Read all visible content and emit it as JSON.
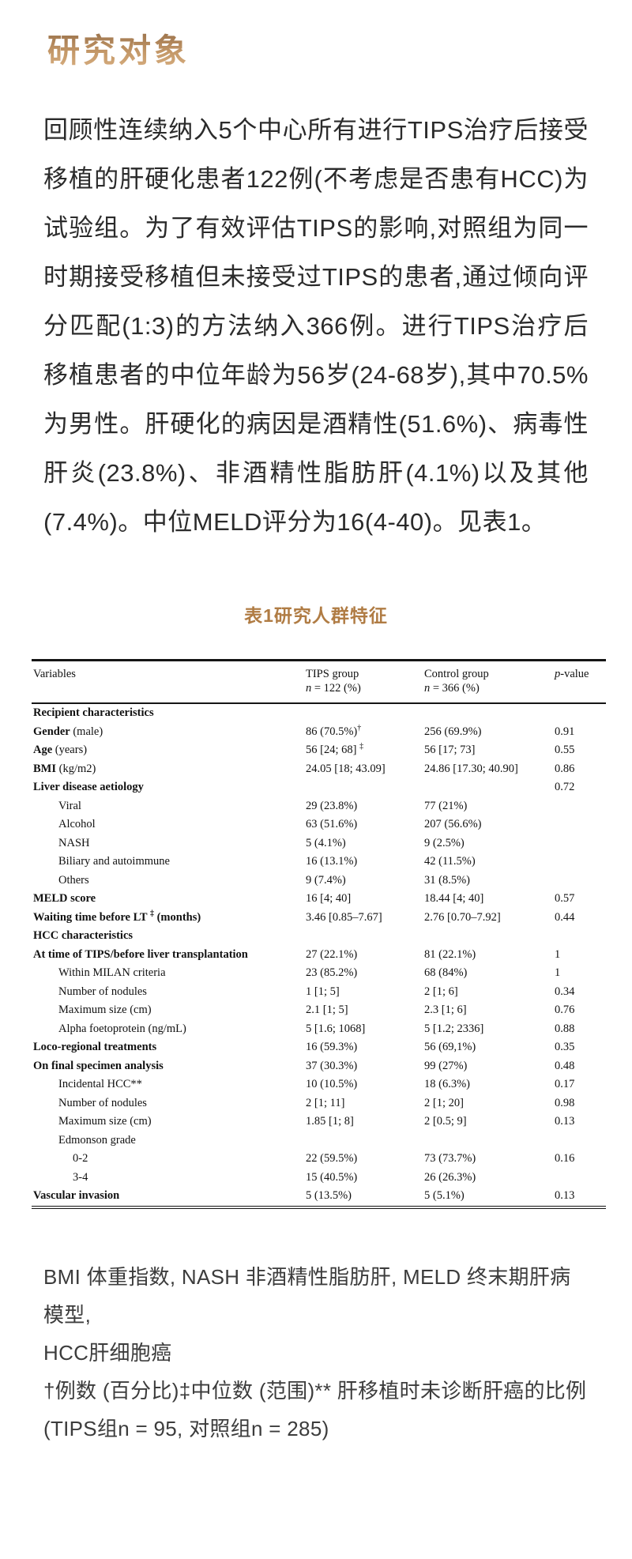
{
  "colors": {
    "accent_gold": "#b07c44",
    "title_gradient_top": "#8a6340",
    "title_gradient_bottom": "#d9b183",
    "body_text": "#2b2b2b",
    "table_text": "#111111",
    "footnote_text": "#3c3c3c",
    "rule_color": "#151515",
    "background": "#ffffff"
  },
  "header": {
    "title": "研究对象"
  },
  "article": {
    "paragraph": "回顾性连续纳入5个中心所有进行TIPS治疗后接受移植的肝硬化患者122例(不考虑是否患有HCC)为试验组。为了有效评估TIPS的影响,对照组为同一时期接受移植但未接受过TIPS的患者,通过倾向评分匹配(1:3)的方法纳入366例。进行TIPS治疗后移植患者的中位年龄为56岁(24-68岁),其中70.5%为男性。肝硬化的病因是酒精性(51.6%)、病毒性肝炎(23.8%)、非酒精性脂肪肝(4.1%)以及其他(7.4%)。中位MELD评分为16(4-40)。见表1。"
  },
  "table_section": {
    "title": "表1研究人群特征"
  },
  "table": {
    "headers": {
      "variables": "Variables",
      "tips_line1": "TIPS group",
      "tips_n": "n",
      "tips_n_rest": " = 122 (%)",
      "control_line1": "Control group",
      "control_n": "n",
      "control_n_rest": " = 366 (%)",
      "p_italic": "p",
      "p_rest": "-value"
    },
    "rows": [
      {
        "bold": "Recipient characteristics",
        "rest": "",
        "indent": 0,
        "tips": "",
        "control": "",
        "p": ""
      },
      {
        "bold": "Gender",
        "rest": " (male)",
        "indent": 0,
        "tips": "86 (70.5%)†",
        "control": "256 (69.9%)",
        "p": "0.91"
      },
      {
        "bold": "Age",
        "rest": " (years)",
        "indent": 0,
        "tips": "56 [24; 68] ‡",
        "control": "56 [17; 73]",
        "p": "0.55"
      },
      {
        "bold": "BMI",
        "rest": " (kg/m2)",
        "indent": 0,
        "tips": "24.05 [18; 43.09]",
        "control": "24.86 [17.30; 40.90]",
        "p": "0.86"
      },
      {
        "bold": "Liver disease aetiology",
        "rest": "",
        "indent": 0,
        "tips": "",
        "control": "",
        "p": "0.72"
      },
      {
        "bold": "",
        "rest": "Viral",
        "indent": 1,
        "tips": "29 (23.8%)",
        "control": "77 (21%)",
        "p": ""
      },
      {
        "bold": "",
        "rest": "Alcohol",
        "indent": 1,
        "tips": "63 (51.6%)",
        "control": "207 (56.6%)",
        "p": ""
      },
      {
        "bold": "",
        "rest": "NASH",
        "indent": 1,
        "tips": "5 (4.1%)",
        "control": "9 (2.5%)",
        "p": ""
      },
      {
        "bold": "",
        "rest": "Biliary and autoimmune",
        "indent": 1,
        "tips": "16 (13.1%)",
        "control": "42 (11.5%)",
        "p": ""
      },
      {
        "bold": "",
        "rest": "Others",
        "indent": 1,
        "tips": "9 (7.4%)",
        "control": "31 (8.5%)",
        "p": ""
      },
      {
        "bold": "MELD score",
        "rest": "",
        "indent": 0,
        "tips": "16 [4; 40]",
        "control": "18.44 [4; 40]",
        "p": "0.57"
      },
      {
        "bold": "Waiting time before LT ‡ (months)",
        "rest": "",
        "indent": 0,
        "tips": "3.46 [0.85–7.67]",
        "control": "2.76 [0.70–7.92]",
        "p": "0.44"
      },
      {
        "bold": "HCC characteristics",
        "rest": "",
        "indent": 0,
        "tips": "",
        "control": "",
        "p": ""
      },
      {
        "bold": "At time of TIPS/before liver transplantation",
        "rest": "",
        "indent": 0,
        "tips": "27 (22.1%)",
        "control": "81 (22.1%)",
        "p": "1"
      },
      {
        "bold": "",
        "rest": "Within MILAN criteria",
        "indent": 1,
        "tips": "23 (85.2%)",
        "control": "68 (84%)",
        "p": "1"
      },
      {
        "bold": "",
        "rest": "Number of nodules",
        "indent": 1,
        "tips": "1 [1; 5]",
        "control": "2 [1; 6]",
        "p": "0.34"
      },
      {
        "bold": "",
        "rest": "Maximum size (cm)",
        "indent": 1,
        "tips": "2.1 [1; 5]",
        "control": "2.3 [1; 6]",
        "p": "0.76"
      },
      {
        "bold": "",
        "rest": "Alpha foetoprotein (ng/mL)",
        "indent": 1,
        "tips": "5 [1.6; 1068]",
        "control": "5 [1.2; 2336]",
        "p": "0.88"
      },
      {
        "bold": "Loco-regional treatments",
        "rest": "",
        "indent": 0,
        "tips": "16 (59.3%)",
        "control": "56 (69,1%)",
        "p": "0.35"
      },
      {
        "bold": "On final specimen analysis",
        "rest": "",
        "indent": 0,
        "tips": "37 (30.3%)",
        "control": "99 (27%)",
        "p": "0.48"
      },
      {
        "bold": "",
        "rest": "Incidental HCC**",
        "indent": 1,
        "tips": "10 (10.5%)",
        "control": "18 (6.3%)",
        "p": "0.17"
      },
      {
        "bold": "",
        "rest": "Number of nodules",
        "indent": 1,
        "tips": "2 [1; 11]",
        "control": "2 [1; 20]",
        "p": "0.98"
      },
      {
        "bold": "",
        "rest": "Maximum size (cm)",
        "indent": 1,
        "tips": "1.85 [1; 8]",
        "control": "2 [0.5; 9]",
        "p": "0.13"
      },
      {
        "bold": "",
        "rest": "Edmonson grade",
        "indent": 1,
        "tips": "",
        "control": "",
        "p": ""
      },
      {
        "bold": "",
        "rest": "0-2",
        "indent": 2,
        "tips": "22 (59.5%)",
        "control": "73 (73.7%)",
        "p": "0.16"
      },
      {
        "bold": "",
        "rest": "3-4",
        "indent": 2,
        "tips": "15 (40.5%)",
        "control": "26 (26.3%)",
        "p": ""
      },
      {
        "bold": "Vascular invasion",
        "rest": "",
        "indent": 0,
        "tips": "5 (13.5%)",
        "control": "5 (5.1%)",
        "p": "0.13"
      }
    ]
  },
  "footnotes": [
    "BMI 体重指数, NASH 非酒精性脂肪肝, MELD 终末期肝病模型,",
    "HCC肝细胞癌",
    "†例数 (百分比)‡中位数 (范围)** 肝移植时未诊断肝癌的比例",
    "(TIPS组n = 95, 对照组n = 285)"
  ]
}
